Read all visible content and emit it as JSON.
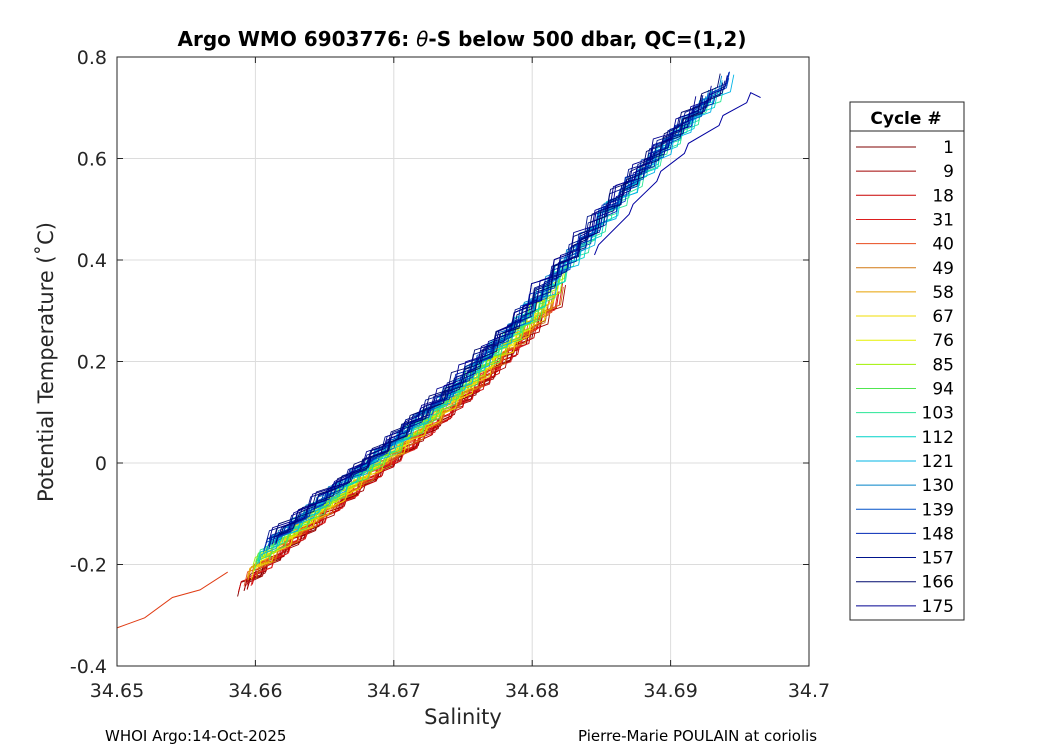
{
  "chart_data": {
    "type": "line",
    "title_prefix": "Argo WMO 6903776: ",
    "title_theta": "θ",
    "title_suffix": "-S below 500 dbar,  QC=(1,2)",
    "xlabel": "Salinity",
    "ylabel": "Potential Temperature (˚C)",
    "xlim": [
      34.65,
      34.7
    ],
    "ylim": [
      -0.4,
      0.8
    ],
    "xticks": [
      "34.65",
      "34.66",
      "34.67",
      "34.68",
      "34.69",
      "34.7"
    ],
    "yticks": [
      "-0.4",
      "-0.2",
      "0",
      "0.2",
      "0.4",
      "0.6",
      "0.8"
    ],
    "grid": true,
    "legend": {
      "title": "Cycle #",
      "placement": "outside-right",
      "entries": [
        "1",
        "9",
        "18",
        "31",
        "40",
        "49",
        "58",
        "67",
        "76",
        "85",
        "94",
        "103",
        "112",
        "121",
        "130",
        "139",
        "148",
        "157",
        "166",
        "175"
      ],
      "colors": [
        "#7f0000",
        "#a00000",
        "#c80000",
        "#dc1e1e",
        "#e84c1e",
        "#d27814",
        "#e6a000",
        "#f0dc00",
        "#e6f000",
        "#a0f000",
        "#50e650",
        "#28e696",
        "#00d2c8",
        "#00b4e6",
        "#0082c8",
        "#0050c8",
        "#0028b4",
        "#00148c",
        "#000a6e",
        "#000090"
      ]
    },
    "series_summary": {
      "shared_trend": {
        "salinity": [
          34.6585,
          34.661,
          34.665,
          34.67,
          34.675,
          34.68,
          34.685,
          34.688,
          34.691,
          34.6935
        ],
        "theta": [
          -0.23,
          -0.17,
          -0.08,
          0.03,
          0.15,
          0.29,
          0.46,
          0.56,
          0.65,
          0.72
        ]
      },
      "cycle_1_extension": {
        "salinity": [
          34.65,
          34.652,
          34.654,
          34.656,
          34.658
        ],
        "theta": [
          -0.325,
          -0.305,
          -0.265,
          -0.25,
          -0.215
        ]
      },
      "cycle_175_tail": {
        "salinity": [
          34.6845,
          34.687,
          34.689,
          34.691,
          34.6935,
          34.6955,
          34.6965
        ],
        "theta": [
          0.41,
          0.49,
          0.555,
          0.61,
          0.665,
          0.71,
          0.72
        ]
      }
    }
  },
  "footer": {
    "left": "WHOI Argo:14-Oct-2025",
    "right": "Pierre-Marie POULAIN at coriolis"
  }
}
